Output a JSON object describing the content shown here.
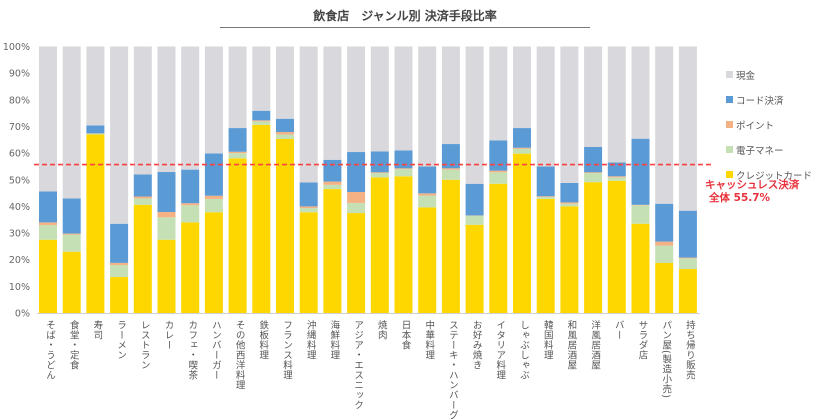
{
  "chart_data": {
    "type": "bar",
    "stacked": true,
    "title": "飲食店　ジャンル別 決済手段比率",
    "xlabel": "",
    "ylabel": "",
    "ylim": [
      0,
      100
    ],
    "yticks": [
      "0%",
      "10%",
      "20%",
      "30%",
      "40%",
      "50%",
      "60%",
      "70%",
      "80%",
      "90%",
      "100%"
    ],
    "grid": false,
    "legend_position": "right",
    "categories": [
      "そば・うどん",
      "食堂・定食",
      "寿司",
      "ラーメン",
      "レストラン",
      "カレー",
      "カフェ・喫茶",
      "ハンバーガー",
      "その他西洋料理",
      "鉄板料理",
      "フランス料理",
      "沖縄料理",
      "海鮮料理",
      "アジア・エスニック",
      "焼肉",
      "日本食",
      "中華料理",
      "ステーキ・ハンバーグ",
      "お好み焼き",
      "イタリア料理",
      "しゃぶしゃぶ",
      "韓国料理",
      "和風居酒屋",
      "洋風居酒屋",
      "バー",
      "サラダ店",
      "パン屋(製造小売)",
      "持ち帰り販売"
    ],
    "series": [
      {
        "name": "クレジットカード",
        "color": "#ffd700",
        "values": [
          27.5,
          23.0,
          67.0,
          13.5,
          40.6,
          27.5,
          34.0,
          37.8,
          58.0,
          70.6,
          65.3,
          37.8,
          46.5,
          37.5,
          50.9,
          51.3,
          39.6,
          50.0,
          33.1,
          48.5,
          59.8,
          42.8,
          40.0,
          49.1,
          49.6,
          33.5,
          18.8,
          16.5
        ]
      },
      {
        "name": "電子マネー",
        "color": "#c5e0b4",
        "values": [
          5.5,
          6.4,
          0.3,
          4.5,
          2.4,
          8.4,
          6.4,
          5.0,
          2.0,
          1.3,
          1.7,
          1.6,
          1.6,
          3.8,
          1.6,
          2.7,
          4.5,
          3.8,
          3.4,
          4.3,
          1.8,
          0.7,
          1.0,
          3.4,
          1.3,
          6.9,
          6.5,
          4.0
        ]
      },
      {
        "name": "ポイント",
        "color": "#f4b183",
        "values": [
          1.0,
          0.4,
          0.1,
          0.8,
          0.7,
          2.0,
          0.8,
          1.2,
          0.5,
          0.4,
          0.9,
          0.6,
          1.2,
          4.1,
          0.3,
          0.3,
          0.8,
          0.5,
          0.1,
          0.6,
          0.4,
          0.3,
          0.5,
          0.3,
          0.4,
          0.2,
          1.5,
          0.3
        ]
      },
      {
        "name": "コード決済",
        "color": "#5b9bd5",
        "values": [
          11.6,
          13.2,
          3.0,
          14.7,
          8.3,
          15.0,
          12.6,
          15.9,
          8.9,
          3.6,
          5.0,
          9.0,
          8.2,
          15.0,
          7.8,
          6.7,
          10.1,
          9.1,
          11.9,
          11.4,
          7.4,
          11.2,
          7.3,
          9.5,
          5.2,
          24.8,
          14.2,
          17.6
        ]
      },
      {
        "name": "現金",
        "color": "#d9d8dc",
        "values": [
          54.4,
          57.0,
          29.6,
          66.5,
          48.0,
          47.1,
          46.2,
          40.1,
          30.6,
          24.1,
          27.1,
          51.0,
          42.5,
          39.6,
          39.4,
          39.0,
          45.0,
          36.6,
          51.5,
          35.2,
          30.6,
          45.0,
          51.2,
          37.7,
          43.5,
          34.6,
          59.0,
          61.6
        ]
      }
    ],
    "legend_order": [
      "現金",
      "コード決済",
      "ポイント",
      "電子マネー",
      "クレジットカード"
    ],
    "reference_line": {
      "value": 55.7,
      "color": "#ff4040",
      "style": "dashed"
    },
    "annotation": {
      "line1": "キャッシュレス決済",
      "line2": "全体 55.7%",
      "color": "#e8323c"
    }
  }
}
